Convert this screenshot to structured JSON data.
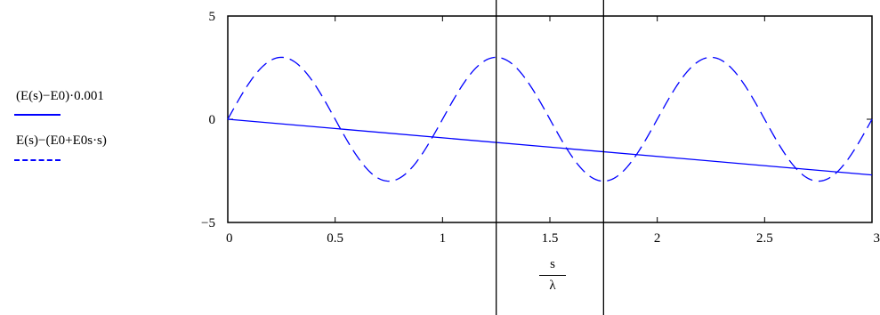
{
  "legend": {
    "entries": [
      {
        "label": "(E(s)−E0)·0.001",
        "style": "solid",
        "color": "#0000ff"
      },
      {
        "label": "E(s)−(E0+E0s·s)",
        "style": "dashed",
        "color": "#0000ff"
      }
    ]
  },
  "axis_label": {
    "numerator": "s",
    "denominator": "λ"
  },
  "chart_data": {
    "type": "line",
    "xlim": [
      0,
      3
    ],
    "ylim": [
      -5,
      5
    ],
    "x_ticks": [
      0,
      0.5,
      1,
      1.5,
      2,
      2.5,
      3
    ],
    "x_tick_labels": [
      "0",
      "0.5",
      "1",
      "1.5",
      "2",
      "2.5",
      "3"
    ],
    "y_ticks": [
      -5,
      0,
      5
    ],
    "y_tick_labels": [
      "−5",
      "0",
      "5"
    ],
    "grid": false,
    "markers": [
      1.25,
      1.75
    ],
    "series": [
      {
        "name": "(E(s)−E0)·0.001",
        "style": "solid",
        "color": "#0000ff",
        "x": [
          0,
          3
        ],
        "y": [
          0,
          -2.7
        ]
      },
      {
        "name": "E(s)−(E0+E0s·s)",
        "style": "dashed",
        "color": "#0000ff",
        "amplitude": 3,
        "period": 1,
        "x": [
          0,
          0.25,
          0.5,
          0.75,
          1,
          1.25,
          1.5,
          1.75,
          2,
          2.25,
          2.5,
          2.75,
          3
        ],
        "y": [
          0,
          3,
          0,
          -3,
          0,
          3,
          0,
          -3,
          0,
          3,
          0,
          -3,
          0
        ]
      }
    ]
  }
}
